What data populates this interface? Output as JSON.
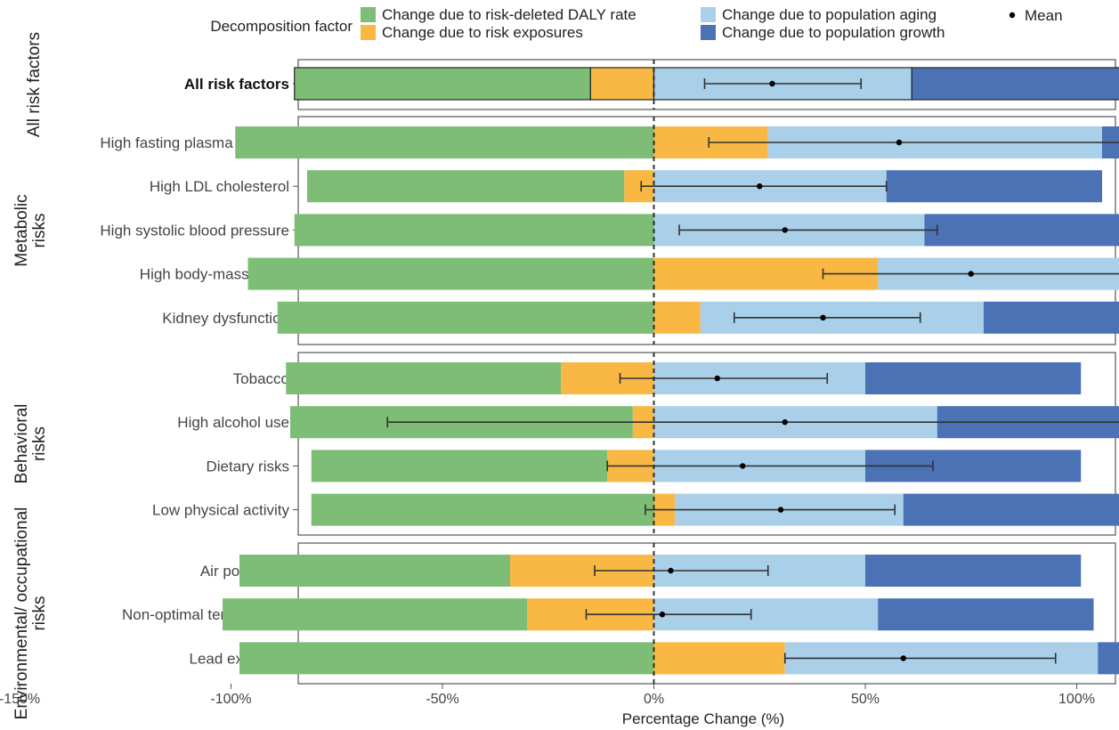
{
  "chart_data": {
    "type": "bar",
    "title": "",
    "xlabel": "Percentage Change (%)",
    "xlim": [
      -165,
      215
    ],
    "xticks": [
      -150,
      -100,
      -50,
      0,
      50,
      100,
      150,
      200
    ],
    "xtick_labels": [
      "-150%",
      "-100%",
      "-50%",
      "0%",
      "50%",
      "100%",
      "150%",
      "200%"
    ],
    "legend": {
      "title": "Decomposition factor",
      "position": "top",
      "items": [
        {
          "key": "rate",
          "label": "Change due to risk-deleted DALY rate",
          "color": "#7dbd75"
        },
        {
          "key": "exposure",
          "label": "Change due to risk exposures",
          "color": "#f8b843"
        },
        {
          "key": "aging",
          "label": "Change due to population aging",
          "color": "#a9cfe9"
        },
        {
          "key": "growth",
          "label": "Change due to population growth",
          "color": "#4a72b5"
        }
      ],
      "mean_label": "Mean"
    },
    "panels": [
      {
        "name": "All risk factors",
        "rows": [
          {
            "label": "All risk factors",
            "bold": true,
            "rate": -70,
            "exposure": -15,
            "aging": 61,
            "growth": 52,
            "mean": 28,
            "lo": 12,
            "hi": 49
          }
        ]
      },
      {
        "name": "Metabolic risks",
        "rows": [
          {
            "label": "High fasting plasma glucose",
            "rate": -99,
            "exposure": 27,
            "aging": 79,
            "growth": 52,
            "mean": 58,
            "lo": 13,
            "hi": 114
          },
          {
            "label": "High LDL cholesterol",
            "rate": -75,
            "exposure": -7,
            "aging": 55,
            "growth": 51,
            "mean": 25,
            "lo": -3,
            "hi": 55
          },
          {
            "label": "High systolic blood pressure",
            "rate": -85,
            "exposure": 0,
            "aging": 64,
            "growth": 51,
            "mean": 31,
            "lo": 6,
            "hi": 67
          },
          {
            "label": "High body-mass index",
            "rate": -96,
            "exposure": 53,
            "aging": 67,
            "growth": 52,
            "mean": 75,
            "lo": 40,
            "hi": 125
          },
          {
            "label": "Kidney dysfunction",
            "rate": -89,
            "exposure": 11,
            "aging": 67,
            "growth": 51,
            "mean": 40,
            "lo": 19,
            "hi": 63
          }
        ]
      },
      {
        "name": "Behavioral risks",
        "rows": [
          {
            "label": "Tobacco",
            "rate": -65,
            "exposure": -22,
            "aging": 50,
            "growth": 51,
            "mean": 15,
            "lo": -8,
            "hi": 41
          },
          {
            "label": "High alcohol use",
            "rate": -81,
            "exposure": -5,
            "aging": 67,
            "growth": 51,
            "mean": 31,
            "lo": -63,
            "hi": 172
          },
          {
            "label": "Dietary risks",
            "rate": -70,
            "exposure": -11,
            "aging": 50,
            "growth": 51,
            "mean": 21,
            "lo": -11,
            "hi": 66
          },
          {
            "label": "Low physical activity",
            "rate": -81,
            "exposure": 5,
            "aging": 54,
            "growth": 51,
            "mean": 30,
            "lo": -2,
            "hi": 57
          }
        ]
      },
      {
        "name": "Environmental/ occupational risks",
        "rows": [
          {
            "label": "Air pollution *",
            "rate": -64,
            "exposure": -34,
            "aging": 50,
            "growth": 51,
            "mean": 4,
            "lo": -14,
            "hi": 27
          },
          {
            "label": "Non-optimal temperature",
            "rate": -72,
            "exposure": -30,
            "aging": 53,
            "growth": 51,
            "mean": 2,
            "lo": -16,
            "hi": 23
          },
          {
            "label": "Lead exposure",
            "rate": -98,
            "exposure": 31,
            "aging": 74,
            "growth": 52,
            "mean": 59,
            "lo": 31,
            "hi": 95
          }
        ]
      }
    ]
  }
}
